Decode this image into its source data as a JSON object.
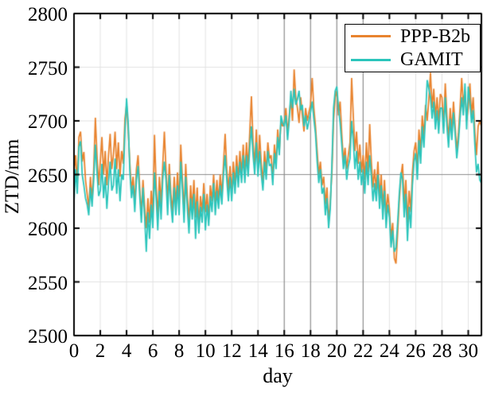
{
  "chart_data": {
    "type": "line",
    "title": "",
    "xlabel": "day",
    "ylabel": "ZTD/mm",
    "xlim": [
      0,
      31
    ],
    "ylim": [
      2500,
      2800
    ],
    "xticks": [
      0,
      2,
      4,
      6,
      8,
      10,
      12,
      14,
      16,
      18,
      20,
      22,
      24,
      26,
      28,
      30
    ],
    "yticks": [
      2500,
      2550,
      2600,
      2650,
      2700,
      2750,
      2800
    ],
    "grid": true,
    "grid_color": "#E2E2E2",
    "highlight_grid_color": "#8C8C8C",
    "highlight_x_gridlines": [
      16,
      18,
      20,
      22
    ],
    "highlight_y_gridlines": [
      2650
    ],
    "axis_color": "#000000",
    "legend_position": "top-right",
    "sample_step_days": 0.125,
    "x_start": 0,
    "series": [
      {
        "name": "PPP-B2b",
        "color": "#E8832E",
        "values": [
          2652,
          2668,
          2641,
          2685,
          2690,
          2662,
          2671,
          2645,
          2632,
          2618,
          2648,
          2625,
          2655,
          2703,
          2668,
          2640,
          2662,
          2685,
          2650,
          2672,
          2640,
          2668,
          2688,
          2655,
          2668,
          2690,
          2655,
          2680,
          2648,
          2672,
          2660,
          2702,
          2715,
          2692,
          2660,
          2635,
          2648,
          2622,
          2655,
          2668,
          2638,
          2612,
          2645,
          2620,
          2600,
          2628,
          2605,
          2635,
          2612,
          2687,
          2640,
          2610,
          2648,
          2622,
          2658,
          2690,
          2655,
          2625,
          2660,
          2632,
          2615,
          2648,
          2620,
          2652,
          2622,
          2678,
          2645,
          2615,
          2660,
          2630,
          2605,
          2640,
          2618,
          2645,
          2610,
          2638,
          2602,
          2630,
          2615,
          2642,
          2615,
          2632,
          2608,
          2640,
          2625,
          2650,
          2622,
          2645,
          2625,
          2650,
          2630,
          2660,
          2688,
          2655,
          2635,
          2658,
          2632,
          2662,
          2640,
          2668,
          2645,
          2672,
          2650,
          2678,
          2650,
          2680,
          2655,
          2690,
          2723,
          2680,
          2658,
          2692,
          2655,
          2687,
          2660,
          2642,
          2672,
          2652,
          2680,
          2665,
          2668,
          2645,
          2678,
          2660,
          2692,
          2672,
          2700,
          2695,
          2698,
          2712,
          2688,
          2705,
          2720,
          2700,
          2748,
          2722,
          2712,
          2698,
          2722,
          2705,
          2690,
          2712,
          2700,
          2708,
          2715,
          2740,
          2712,
          2695,
          2672,
          2650,
          2662,
          2640,
          2648,
          2622,
          2638,
          2605,
          2625,
          2652,
          2700,
          2722,
          2728,
          2705,
          2718,
          2688,
          2662,
          2675,
          2655,
          2668,
          2680,
          2740,
          2705,
          2672,
          2690,
          2660,
          2678,
          2652,
          2668,
          2645,
          2680,
          2652,
          2697,
          2662,
          2638,
          2655,
          2635,
          2662,
          2628,
          2650,
          2618,
          2645,
          2612,
          2632,
          2618,
          2590,
          2605,
          2572,
          2567,
          2595,
          2625,
          2648,
          2660,
          2622,
          2645,
          2605,
          2635,
          2615,
          2652,
          2672,
          2680,
          2655,
          2692,
          2670,
          2705,
          2685,
          2715,
          2700,
          2720,
          2745,
          2712,
          2730,
          2702,
          2722,
          2698,
          2725,
          2722,
          2695,
          2735,
          2705,
          2682,
          2712,
          2690,
          2718,
          2695,
          2672,
          2688,
          2712,
          2740,
          2715,
          2728,
          2700,
          2712,
          2735,
          2705,
          2722,
          2690,
          2668,
          2695,
          2700,
          2695
        ]
      },
      {
        "name": "GAMIT",
        "color": "#2BC5BB",
        "values": [
          2625,
          2655,
          2632,
          2676,
          2681,
          2650,
          2640,
          2628,
          2622,
          2612,
          2638,
          2620,
          2645,
          2678,
          2652,
          2630,
          2635,
          2660,
          2628,
          2648,
          2618,
          2642,
          2662,
          2635,
          2640,
          2665,
          2632,
          2655,
          2625,
          2650,
          2645,
          2690,
          2721,
          2698,
          2652,
          2628,
          2640,
          2615,
          2645,
          2658,
          2630,
          2605,
          2638,
          2610,
          2578,
          2615,
          2590,
          2622,
          2600,
          2652,
          2628,
          2598,
          2635,
          2608,
          2645,
          2662,
          2645,
          2612,
          2650,
          2622,
          2605,
          2638,
          2612,
          2640,
          2612,
          2662,
          2635,
          2605,
          2648,
          2618,
          2595,
          2628,
          2608,
          2632,
          2590,
          2625,
          2595,
          2620,
          2605,
          2632,
          2598,
          2622,
          2602,
          2630,
          2615,
          2642,
          2612,
          2635,
          2618,
          2640,
          2622,
          2650,
          2668,
          2645,
          2625,
          2648,
          2625,
          2652,
          2632,
          2658,
          2638,
          2662,
          2642,
          2668,
          2642,
          2668,
          2648,
          2675,
          2695,
          2668,
          2650,
          2680,
          2648,
          2672,
          2650,
          2635,
          2662,
          2645,
          2672,
          2658,
          2660,
          2640,
          2670,
          2655,
          2685,
          2668,
          2705,
          2698,
          2695,
          2705,
          2682,
          2700,
          2728,
          2712,
          2730,
          2715,
          2720,
          2728,
          2710,
          2715,
          2695,
          2705,
          2692,
          2700,
          2708,
          2718,
          2702,
          2688,
          2662,
          2642,
          2655,
          2632,
          2638,
          2612,
          2628,
          2600,
          2618,
          2660,
          2712,
          2728,
          2732,
          2712,
          2698,
          2678,
          2655,
          2668,
          2645,
          2658,
          2665,
          2700,
          2682,
          2655,
          2672,
          2645,
          2662,
          2640,
          2655,
          2632,
          2662,
          2640,
          2668,
          2648,
          2625,
          2642,
          2625,
          2650,
          2618,
          2640,
          2608,
          2635,
          2600,
          2622,
          2610,
          2582,
          2598,
          2578,
          2582,
          2605,
          2632,
          2652,
          2645,
          2610,
          2632,
          2588,
          2620,
          2600,
          2640,
          2662,
          2670,
          2645,
          2682,
          2660,
          2695,
          2675,
          2705,
          2738,
          2730,
          2722,
          2702,
          2718,
          2692,
          2710,
          2688,
          2712,
          2712,
          2688,
          2722,
          2695,
          2675,
          2702,
          2682,
          2708,
          2688,
          2665,
          2680,
          2702,
          2722,
          2705,
          2735,
          2692,
          2732,
          2718,
          2698,
          2710,
          2678,
          2652,
          2660,
          2645,
          2642
        ]
      }
    ]
  }
}
